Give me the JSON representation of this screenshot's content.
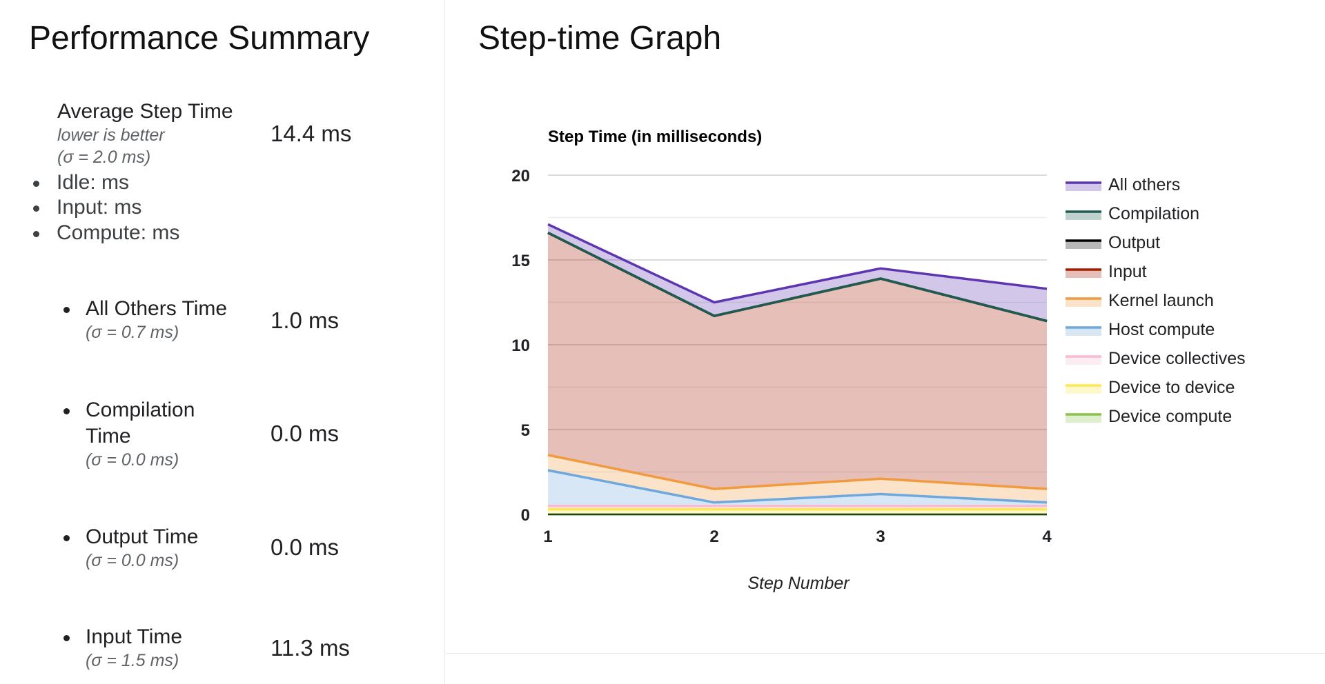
{
  "summary": {
    "title": "Performance Summary",
    "average_step": {
      "label": "Average Step Time",
      "note": "lower is better",
      "sigma": "(σ = 2.0 ms)",
      "value": "14.4 ms",
      "breakdown": [
        "Idle: ms",
        "Input: ms",
        "Compute: ms"
      ]
    },
    "metrics": [
      {
        "label_lines": [
          "All Others Time"
        ],
        "sigma": "(σ = 0.7 ms)",
        "value": "1.0 ms"
      },
      {
        "label_lines": [
          "Compilation",
          "Time"
        ],
        "sigma": "(σ = 0.0 ms)",
        "value": "0.0 ms"
      },
      {
        "label_lines": [
          "Output Time"
        ],
        "sigma": "(σ = 0.0 ms)",
        "value": "0.0 ms"
      },
      {
        "label_lines": [
          "Input Time"
        ],
        "sigma": "(σ = 1.5 ms)",
        "value": "11.3 ms"
      }
    ]
  },
  "graph": {
    "title": "Step-time Graph"
  },
  "chart_data": {
    "type": "area",
    "title": "Step Time (in milliseconds)",
    "xlabel": "Step Number",
    "ylabel": "",
    "x": [
      1,
      2,
      3,
      4
    ],
    "ylim": [
      0,
      20
    ],
    "yticks": [
      0,
      5,
      10,
      15,
      20
    ],
    "grid": true,
    "stacked": true,
    "legend_position": "right",
    "series": [
      {
        "name": "Device compute",
        "color": "#8bc34a",
        "values": [
          0.0,
          0.0,
          0.0,
          0.0
        ]
      },
      {
        "name": "Device to device",
        "color": "#fde74c",
        "values": [
          0.3,
          0.3,
          0.3,
          0.3
        ]
      },
      {
        "name": "Device collectives",
        "color": "#f8bbd0",
        "values": [
          0.2,
          0.2,
          0.2,
          0.2
        ]
      },
      {
        "name": "Host compute",
        "color": "#6fa8dc",
        "values": [
          2.1,
          0.2,
          0.7,
          0.2
        ]
      },
      {
        "name": "Kernel launch",
        "color": "#f19a3e",
        "values": [
          0.9,
          0.8,
          0.9,
          0.8
        ]
      },
      {
        "name": "Input",
        "color": "#a61c00",
        "values": [
          13.1,
          10.2,
          11.8,
          9.9
        ]
      },
      {
        "name": "Output",
        "color": "#000000",
        "values": [
          0.0,
          0.0,
          0.0,
          0.0
        ]
      },
      {
        "name": "Compilation",
        "color": "#1f5c50",
        "values": [
          0.0,
          0.0,
          0.0,
          0.0
        ]
      },
      {
        "name": "All others",
        "color": "#5e35b1",
        "values": [
          0.5,
          0.8,
          0.6,
          1.9
        ]
      }
    ]
  }
}
